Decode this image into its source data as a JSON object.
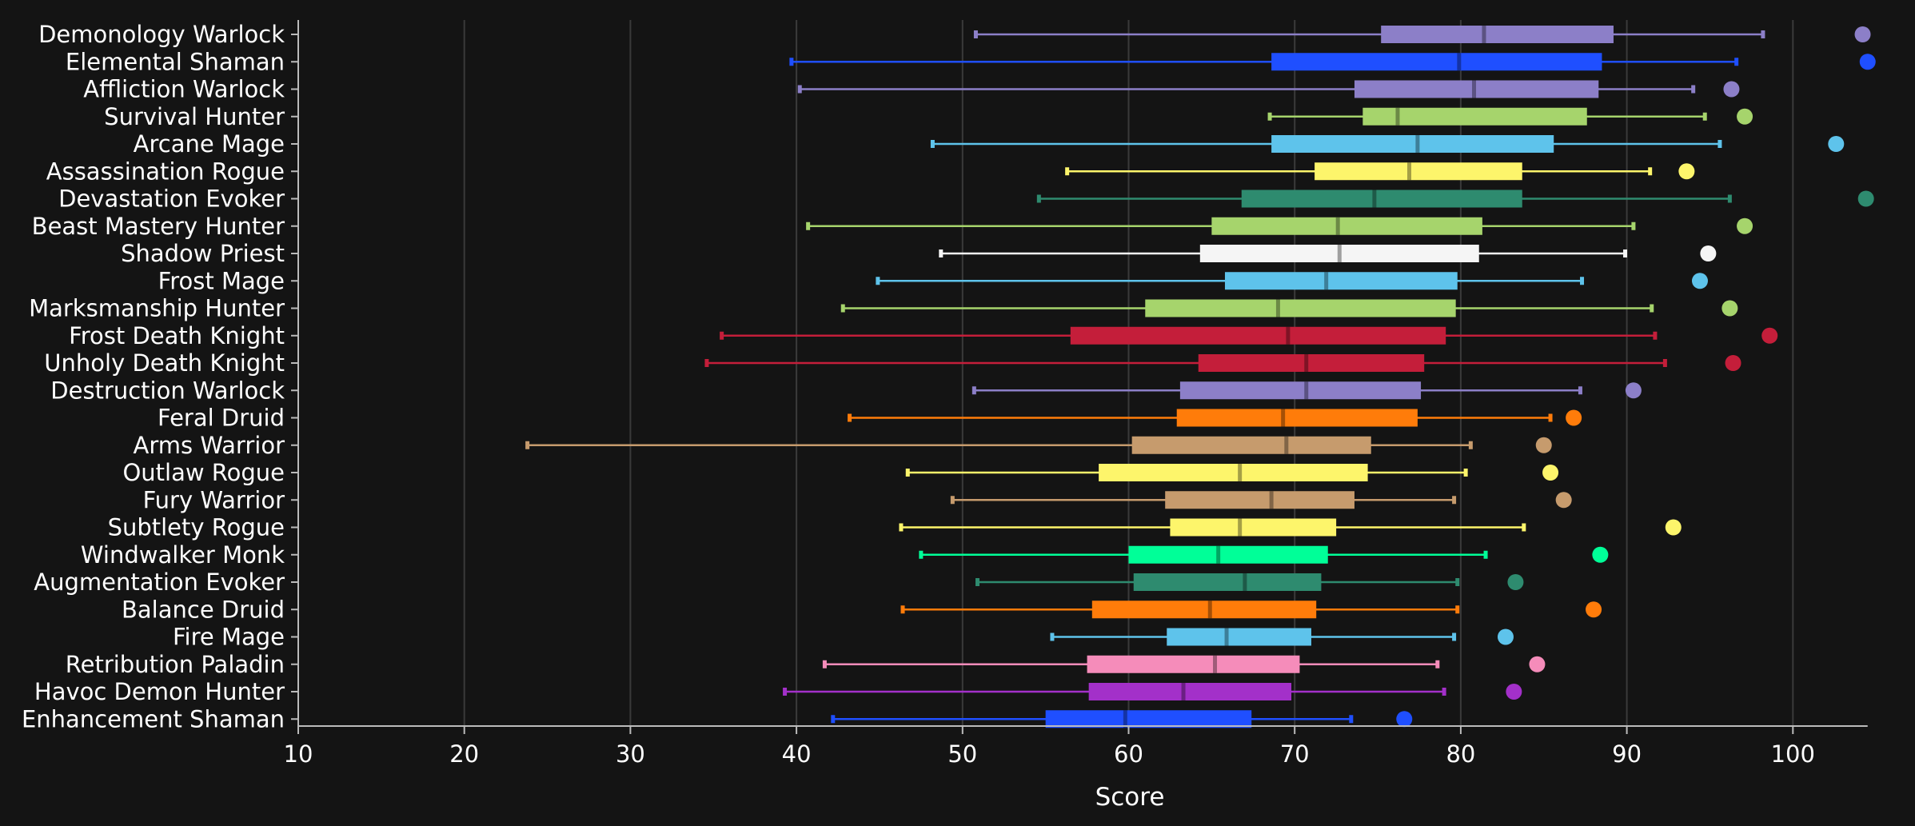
{
  "chart_data": {
    "type": "box",
    "xlabel": "Score",
    "xlim": [
      10,
      104.5
    ],
    "xticks": [
      10,
      20,
      30,
      40,
      50,
      60,
      70,
      80,
      90,
      100
    ],
    "grid": true,
    "series": [
      {
        "name": "Demonology Warlock",
        "color": "#8C7FC8",
        "min": 50.8,
        "q1": 75.2,
        "median": 81.4,
        "q3": 89.2,
        "max": 98.2,
        "top": 104.2
      },
      {
        "name": "Elemental Shaman",
        "color": "#1F4FFF",
        "min": 39.7,
        "q1": 68.6,
        "median": 79.9,
        "q3": 88.5,
        "max": 96.6,
        "top": 104.5
      },
      {
        "name": "Affliction Warlock",
        "color": "#8C7FC8",
        "min": 40.2,
        "q1": 73.6,
        "median": 80.8,
        "q3": 88.3,
        "max": 94.0,
        "top": 96.3
      },
      {
        "name": "Survival Hunter",
        "color": "#A6D46C",
        "min": 68.5,
        "q1": 74.1,
        "median": 76.2,
        "q3": 87.6,
        "max": 94.7,
        "top": 97.1
      },
      {
        "name": "Arcane Mage",
        "color": "#5EC3EB",
        "min": 48.2,
        "q1": 68.6,
        "median": 77.4,
        "q3": 85.6,
        "max": 95.6,
        "top": 102.6
      },
      {
        "name": "Assassination Rogue",
        "color": "#FDF56B",
        "min": 56.3,
        "q1": 71.2,
        "median": 76.9,
        "q3": 83.7,
        "max": 91.4,
        "top": 93.6
      },
      {
        "name": "Devastation Evoker",
        "color": "#2E8B6F",
        "min": 54.6,
        "q1": 66.8,
        "median": 74.8,
        "q3": 83.7,
        "max": 96.2,
        "top": 104.4
      },
      {
        "name": "Beast Mastery Hunter",
        "color": "#A6D46C",
        "min": 40.7,
        "q1": 65.0,
        "median": 72.6,
        "q3": 81.3,
        "max": 90.4,
        "top": 97.1
      },
      {
        "name": "Shadow Priest",
        "color": "#F5F5F5",
        "min": 48.7,
        "q1": 64.3,
        "median": 72.7,
        "q3": 81.1,
        "max": 89.9,
        "top": 94.9
      },
      {
        "name": "Frost Mage",
        "color": "#5EC3EB",
        "min": 44.9,
        "q1": 65.8,
        "median": 71.9,
        "q3": 79.8,
        "max": 87.3,
        "top": 94.4
      },
      {
        "name": "Marksmanship Hunter",
        "color": "#A6D46C",
        "min": 42.8,
        "q1": 61.0,
        "median": 69.0,
        "q3": 79.7,
        "max": 91.5,
        "top": 96.2
      },
      {
        "name": "Frost Death Knight",
        "color": "#C41E3A",
        "min": 35.5,
        "q1": 56.5,
        "median": 69.6,
        "q3": 79.1,
        "max": 91.7,
        "top": 98.6
      },
      {
        "name": "Unholy Death Knight",
        "color": "#C41E3A",
        "min": 34.6,
        "q1": 64.2,
        "median": 70.7,
        "q3": 77.8,
        "max": 92.3,
        "top": 96.4
      },
      {
        "name": "Destruction Warlock",
        "color": "#8C7FC8",
        "min": 50.7,
        "q1": 63.1,
        "median": 70.7,
        "q3": 77.6,
        "max": 87.2,
        "top": 90.4
      },
      {
        "name": "Feral Druid",
        "color": "#FF7C0A",
        "min": 43.2,
        "q1": 62.9,
        "median": 69.3,
        "q3": 77.4,
        "max": 85.4,
        "top": 86.8
      },
      {
        "name": "Arms Warrior",
        "color": "#C69B6D",
        "min": 23.8,
        "q1": 60.2,
        "median": 69.5,
        "q3": 74.6,
        "max": 80.6,
        "top": 85.0
      },
      {
        "name": "Outlaw Rogue",
        "color": "#FDF56B",
        "min": 46.7,
        "q1": 58.2,
        "median": 66.7,
        "q3": 74.4,
        "max": 80.3,
        "top": 85.4
      },
      {
        "name": "Fury Warrior",
        "color": "#C69B6D",
        "min": 49.4,
        "q1": 62.2,
        "median": 68.6,
        "q3": 73.6,
        "max": 79.6,
        "top": 86.2
      },
      {
        "name": "Subtlety Rogue",
        "color": "#FDF56B",
        "min": 46.3,
        "q1": 62.5,
        "median": 66.7,
        "q3": 72.5,
        "max": 83.8,
        "top": 92.8
      },
      {
        "name": "Windwalker Monk",
        "color": "#00FF98",
        "min": 47.5,
        "q1": 60.0,
        "median": 65.4,
        "q3": 72.0,
        "max": 81.5,
        "top": 88.4
      },
      {
        "name": "Augmentation Evoker",
        "color": "#2E8B6F",
        "min": 50.9,
        "q1": 60.3,
        "median": 67.0,
        "q3": 71.6,
        "max": 79.8,
        "top": 83.3
      },
      {
        "name": "Balance Druid",
        "color": "#FF7C0A",
        "min": 46.4,
        "q1": 57.8,
        "median": 64.9,
        "q3": 71.3,
        "max": 79.8,
        "top": 88.0
      },
      {
        "name": "Fire Mage",
        "color": "#5EC3EB",
        "min": 55.4,
        "q1": 62.3,
        "median": 65.9,
        "q3": 71.0,
        "max": 79.6,
        "top": 82.7
      },
      {
        "name": "Retribution Paladin",
        "color": "#F58CBA",
        "min": 41.7,
        "q1": 57.5,
        "median": 65.2,
        "q3": 70.3,
        "max": 78.6,
        "top": 84.6
      },
      {
        "name": "Havoc Demon Hunter",
        "color": "#A330C9",
        "min": 39.3,
        "q1": 57.6,
        "median": 63.3,
        "q3": 69.8,
        "max": 79.0,
        "top": 83.2
      },
      {
        "name": "Enhancement Shaman",
        "color": "#1F4FFF",
        "min": 42.2,
        "q1": 55.0,
        "median": 59.8,
        "q3": 67.4,
        "max": 73.4,
        "top": 76.6
      }
    ]
  }
}
